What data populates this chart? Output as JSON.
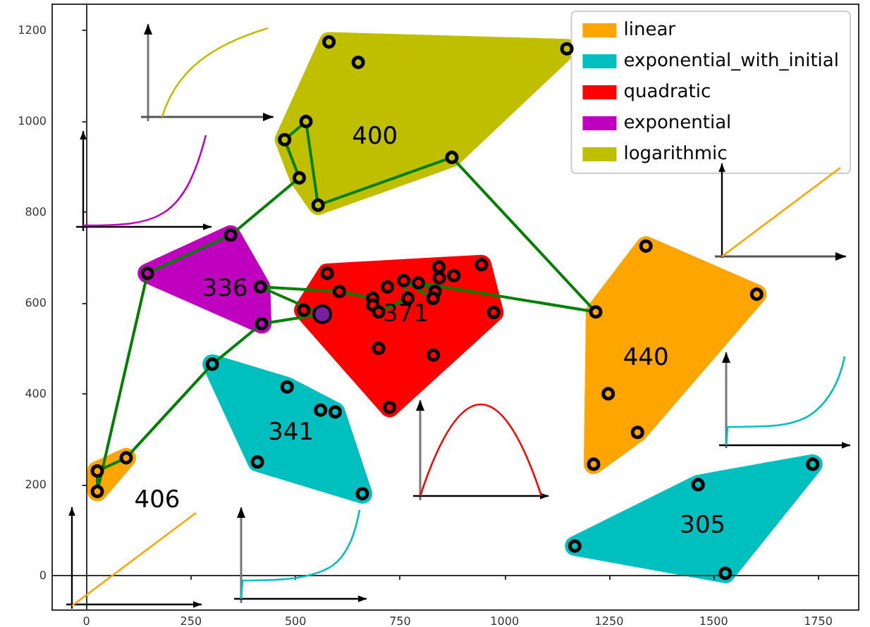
{
  "chart_data": {
    "type": "scatter",
    "marker": "circle",
    "legend": "top right",
    "xlim": [
      -82,
      1847
    ],
    "ylim": [
      -76,
      1257
    ],
    "xticks": [
      0,
      250,
      500,
      750,
      1000,
      1250,
      1500,
      1750
    ],
    "yticks": [
      0,
      200,
      400,
      600,
      800,
      1000,
      1200
    ],
    "series": [
      {
        "name": "linear",
        "color": "#ffa500",
        "x": [
          26,
          26,
          95
        ],
        "values": [
          185,
          230,
          259
        ]
      },
      {
        "name": "exponential_with_initial",
        "color": "#00bfbf",
        "x": [
          301,
          480,
          560,
          595,
          409,
          660
        ],
        "values": [
          465,
          415,
          364,
          360,
          250,
          180
        ]
      },
      {
        "name": "quadratic",
        "color": "#ff0000",
        "x": [
          576,
          605,
          520,
          685,
          685,
          699,
          720,
          759,
          769,
          794,
          834,
          829,
          843,
          844,
          879,
          945,
          974,
          699,
          830,
          725
        ],
        "values": [
          665,
          625,
          584,
          610,
          595,
          580,
          635,
          649,
          610,
          644,
          625,
          610,
          679,
          655,
          660,
          684,
          579,
          500,
          485,
          370
        ]
      },
      {
        "name": "exponential",
        "color": "#bf00bf",
        "x": [
          345,
          146,
          416,
          419
        ],
        "values": [
          749,
          665,
          635,
          554
        ]
      },
      {
        "name": "logarithmic",
        "color": "#bfbf00",
        "x": [
          580,
          650,
          1149,
          525,
          474,
          509,
          554,
          874
        ],
        "values": [
          1174,
          1129,
          1159,
          999,
          959,
          875,
          815,
          920
        ]
      },
      {
        "color": "#ffa500",
        "x": [
          1338,
          1603,
          1218,
          1248,
          1318,
          1213
        ],
        "values": [
          725,
          619,
          580,
          400,
          315,
          245
        ]
      },
      {
        "color": "#00bfbf",
        "x": [
          1737,
          1463,
          1168,
          1528
        ],
        "values": [
          245,
          200,
          65,
          5
        ]
      },
      {
        "color": "#7a1fa2",
        "x": [
          564
        ],
        "values": [
          575
        ]
      },
      {
        "type": "line",
        "marker": "none",
        "color": "#008000",
        "x": [
          26,
          26,
          95,
          301,
          419,
          564,
          416,
          605,
          685,
          685,
          699,
          769,
          759,
          829,
          834,
          794,
          1218,
          874,
          554,
          525,
          474,
          509,
          345,
          146
        ],
        "values": [
          185,
          230,
          259,
          465,
          554,
          575,
          635,
          625,
          610,
          595,
          580,
          610,
          649,
          610,
          625,
          644,
          580,
          920,
          815,
          999,
          959,
          875,
          749,
          665
        ]
      },
      {
        "type": "line",
        "marker": "none",
        "color": "#008000",
        "x": [
          146,
          26
        ],
        "values": [
          665,
          185
        ]
      }
    ],
    "annotations": [
      "406",
      "341",
      "371",
      "336",
      "400",
      "440",
      "305"
    ]
  }
}
